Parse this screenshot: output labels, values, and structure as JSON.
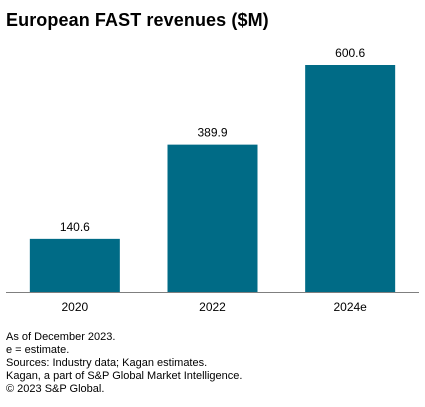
{
  "chart_data": {
    "type": "bar",
    "title": "European FAST revenues ($M)",
    "categories": [
      "2020",
      "2022",
      "2024e"
    ],
    "values": [
      140.6,
      389.9,
      600.6
    ],
    "value_labels": [
      "140.6",
      "389.9",
      "600.6"
    ],
    "xlabel": "",
    "ylabel": "",
    "ylim": [
      0,
      600.6
    ],
    "grid": false,
    "bar_color": "#006b86",
    "axis_color": "#7f7f7f"
  },
  "footnotes": [
    "As of December 2023.",
    "e = estimate.",
    "Sources: Industry data; Kagan estimates.",
    "Kagan, a part of S&P Global Market Intelligence.",
    "© 2023 S&P Global."
  ]
}
